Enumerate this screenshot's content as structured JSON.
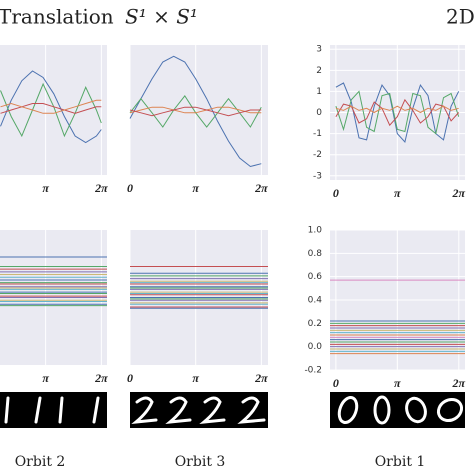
{
  "header": {
    "left": "Translation",
    "middle": "S¹ × S¹",
    "right": "2D"
  },
  "captions": [
    "Orbit 2",
    "Orbit 3",
    "Orbit 1"
  ],
  "chart_data": [
    {
      "type": "line",
      "xlim": [
        0.57,
        6.6
      ],
      "ylim": [
        -2,
        2
      ],
      "xticks": [
        {
          "value": 3.1416,
          "label": "π"
        },
        {
          "value": 6.2832,
          "label": "2π"
        }
      ],
      "x": [
        0.6,
        1.2,
        1.8,
        2.4,
        3.0,
        3.6,
        4.2,
        4.8,
        5.4,
        6.0,
        6.28
      ],
      "series": [
        {
          "color": "#4c72b0",
          "values": [
            -0.5,
            0.3,
            0.9,
            1.2,
            1.0,
            0.5,
            -0.2,
            -0.8,
            -1.0,
            -0.8,
            -0.6
          ]
        },
        {
          "color": "#55a868",
          "values": [
            0.6,
            -0.2,
            -0.8,
            0.0,
            0.8,
            0.1,
            -0.8,
            -0.1,
            0.7,
            0.0,
            -0.4
          ]
        },
        {
          "color": "#c44e52",
          "values": [
            -0.1,
            0.0,
            0.1,
            0.2,
            0.2,
            0.1,
            0.0,
            -0.1,
            0.0,
            0.1,
            0.1
          ]
        },
        {
          "color": "#dd8452",
          "values": [
            0.1,
            0.2,
            0.1,
            0.0,
            -0.1,
            -0.1,
            0.0,
            0.1,
            0.2,
            0.3,
            0.3
          ]
        }
      ]
    },
    {
      "type": "line",
      "xlim": [
        0,
        6.6
      ],
      "ylim": [
        -2.2,
        2.4
      ],
      "xticks": [
        0,
        {
          "value": 3.1416,
          "label": "π"
        },
        {
          "value": 6.2832,
          "label": "2π"
        }
      ],
      "x": [
        0,
        0.52,
        1.05,
        1.57,
        2.09,
        2.62,
        3.14,
        3.67,
        4.19,
        4.71,
        5.24,
        5.76,
        6.28
      ],
      "series": [
        {
          "color": "#4c72b0",
          "values": [
            -0.2,
            0.5,
            1.2,
            1.8,
            2.0,
            1.8,
            1.2,
            0.5,
            -0.3,
            -1.0,
            -1.6,
            -1.9,
            -1.8
          ]
        },
        {
          "color": "#55a868",
          "values": [
            0.0,
            0.5,
            0.0,
            -0.5,
            0.1,
            0.6,
            0.0,
            -0.5,
            0.0,
            0.5,
            0.0,
            -0.5,
            0.2
          ]
        },
        {
          "color": "#dd8452",
          "values": [
            0.0,
            0.1,
            0.2,
            0.2,
            0.1,
            0.0,
            0.0,
            0.1,
            0.2,
            0.2,
            0.1,
            0.0,
            0.0
          ]
        },
        {
          "color": "#c44e52",
          "values": [
            0.1,
            0.0,
            -0.1,
            0.0,
            0.1,
            0.2,
            0.2,
            0.1,
            0.0,
            -0.1,
            0.0,
            0.1,
            0.1
          ]
        }
      ]
    },
    {
      "type": "line",
      "xlim": [
        -0.3,
        6.6
      ],
      "ylim": [
        -3.2,
        3.2
      ],
      "xticks": [
        0,
        {
          "value": 3.1416,
          "label": "π"
        },
        {
          "value": 6.2832,
          "label": "2π"
        }
      ],
      "yticks": [
        -3,
        -2,
        -1,
        0,
        1,
        2,
        3
      ],
      "x": [
        0,
        0.39,
        0.79,
        1.18,
        1.57,
        1.96,
        2.36,
        2.75,
        3.14,
        3.53,
        3.93,
        4.32,
        4.71,
        5.11,
        5.5,
        5.89,
        6.28
      ],
      "series": [
        {
          "color": "#4c72b0",
          "values": [
            1.2,
            1.4,
            0.5,
            -1.2,
            -1.3,
            0.3,
            1.3,
            0.8,
            -1.0,
            -1.4,
            0.2,
            1.3,
            0.8,
            -1.0,
            -1.3,
            0.3,
            1.0
          ]
        },
        {
          "color": "#55a868",
          "values": [
            0.3,
            -0.8,
            0.6,
            1.0,
            -0.7,
            -0.9,
            0.8,
            0.9,
            -0.8,
            -0.9,
            0.9,
            0.8,
            -0.7,
            -1.0,
            0.7,
            0.9,
            -0.2
          ]
        },
        {
          "color": "#c44e52",
          "values": [
            -0.2,
            0.4,
            0.3,
            -0.5,
            -0.3,
            0.5,
            0.2,
            -0.6,
            -0.2,
            0.6,
            0.1,
            -0.5,
            -0.2,
            0.4,
            0.3,
            -0.4,
            0.0
          ]
        },
        {
          "color": "#dd8452",
          "values": [
            0.2,
            0.1,
            0.3,
            0.1,
            0.2,
            0.0,
            0.2,
            0.1,
            0.3,
            0.1,
            0.2,
            0.0,
            0.2,
            0.1,
            0.3,
            0.1,
            0.2
          ]
        }
      ]
    },
    {
      "type": "hlines",
      "xlim": [
        0.57,
        6.6
      ],
      "ylim": [
        0,
        1
      ],
      "xticks": [
        {
          "value": 3.1416,
          "label": "π"
        },
        {
          "value": 6.2832,
          "label": "2π"
        }
      ],
      "palette": [
        "#4c72b0",
        "#55a868",
        "#c44e52",
        "#8172b2",
        "#ccb974",
        "#64b5cd"
      ],
      "levels": [
        0.8,
        0.73,
        0.71,
        0.69,
        0.67,
        0.65,
        0.63,
        0.61,
        0.6,
        0.58,
        0.57,
        0.56,
        0.54,
        0.53,
        0.51,
        0.5,
        0.48,
        0.47,
        0.45,
        0.44
      ]
    },
    {
      "type": "hlines",
      "xlim": [
        0,
        6.6
      ],
      "ylim": [
        0,
        1
      ],
      "xticks": [
        0,
        {
          "value": 3.1416,
          "label": "π"
        },
        {
          "value": 6.2832,
          "label": "2π"
        }
      ],
      "palette": [
        "#c44e52",
        "#4c72b0",
        "#55a868",
        "#8172b2",
        "#ccb974",
        "#64b5cd"
      ],
      "levels": [
        0.73,
        0.68,
        0.66,
        0.64,
        0.62,
        0.61,
        0.6,
        0.58,
        0.57,
        0.56,
        0.54,
        0.53,
        0.52,
        0.5,
        0.49,
        0.48,
        0.46,
        0.45,
        0.43,
        0.42
      ]
    },
    {
      "type": "hlines",
      "xlim": [
        -0.3,
        6.6
      ],
      "ylim": [
        -0.2,
        1.0
      ],
      "xticks": [
        0,
        {
          "value": 3.1416,
          "label": "π"
        },
        {
          "value": 6.2832,
          "label": "2π"
        }
      ],
      "yticks": [
        -0.2,
        {
          "value": 0,
          "label": "0.0"
        },
        0.2,
        0.4,
        0.6,
        0.8,
        {
          "value": 1,
          "label": "1.0"
        }
      ],
      "palette": [
        "#da8bc3",
        "#4c72b0",
        "#55a868",
        "#c44e52",
        "#8172b2",
        "#ccb974",
        "#64b5cd",
        "#dd8452"
      ],
      "levels": [
        0.57,
        0.22,
        0.2,
        0.18,
        0.16,
        0.14,
        0.12,
        0.1,
        0.08,
        0.06,
        0.04,
        0.02,
        0.0,
        -0.02,
        -0.04,
        -0.06
      ]
    }
  ]
}
